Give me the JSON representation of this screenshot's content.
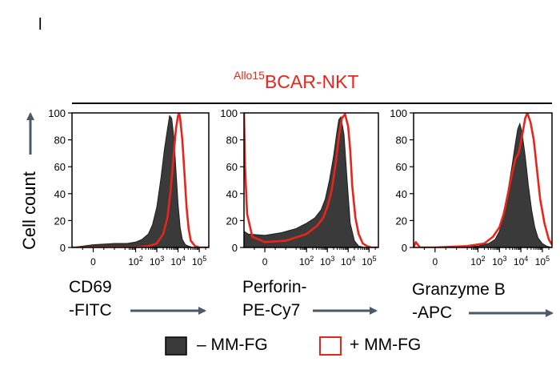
{
  "panel_label": "l",
  "title": {
    "superscript": "Allo15",
    "main": "BCAR-NKT"
  },
  "colors": {
    "filled": "#3a3a3a",
    "outline": "#e8251b",
    "arrow": "#4a5a6a"
  },
  "legend": [
    {
      "symbol": "filled-square",
      "label": "– MM-FG"
    },
    {
      "symbol": "outline-square",
      "label": "+ MM-FG"
    }
  ],
  "chart_data": [
    {
      "type": "area",
      "name": "cd69",
      "xscale": "log",
      "xlim": [
        -1,
        5.45
      ],
      "ylim": [
        0,
        100
      ],
      "yticks": [
        "100",
        "80",
        "60",
        "40",
        "20",
        "0"
      ],
      "xticks": [
        {
          "label": "0",
          "value": 0,
          "super": false
        },
        {
          "label": "10",
          "exp": "2",
          "value": 2
        },
        {
          "label": "10",
          "exp": "3",
          "value": 3
        },
        {
          "label": "10",
          "exp": "4",
          "value": 4
        },
        {
          "label": "10",
          "exp": "5",
          "value": 5
        }
      ],
      "ylabel": "Cell count",
      "xlabel": [
        "CD69",
        "-FITC"
      ],
      "series": [
        {
          "name": "– MM-FG",
          "x": [
            -1,
            0,
            1,
            1.6,
            2.0,
            2.3,
            2.6,
            2.8,
            3.0,
            3.2,
            3.35,
            3.5,
            3.6,
            3.7,
            3.8,
            3.9,
            4.0,
            4.1,
            4.2,
            4.35,
            4.5,
            4.7,
            5.0,
            5.45
          ],
          "y": [
            0,
            2,
            3,
            3,
            4,
            6,
            10,
            17,
            30,
            52,
            72,
            88,
            98,
            96,
            82,
            58,
            32,
            15,
            6,
            2,
            1,
            0,
            0,
            0
          ]
        },
        {
          "name": "+ MM-FG",
          "x": [
            -1,
            1,
            2.0,
            2.6,
            3.0,
            3.3,
            3.5,
            3.65,
            3.8,
            3.9,
            4.0,
            4.05,
            4.1,
            4.2,
            4.3,
            4.4,
            4.5,
            4.6,
            4.8,
            5.0,
            5.45
          ],
          "y": [
            0,
            0,
            0,
            1,
            3,
            10,
            22,
            42,
            70,
            88,
            98,
            100,
            96,
            80,
            56,
            30,
            14,
            5,
            1,
            0,
            0
          ]
        }
      ]
    },
    {
      "type": "area",
      "name": "perforin",
      "xscale": "log",
      "xlim": [
        -1,
        5.45
      ],
      "ylim": [
        0,
        100
      ],
      "yticks": [
        "100",
        "80",
        "60",
        "40",
        "20",
        "0"
      ],
      "xticks": [
        {
          "label": "0",
          "value": 0,
          "super": false
        },
        {
          "label": "10",
          "exp": "2",
          "value": 2
        },
        {
          "label": "10",
          "exp": "3",
          "value": 3
        },
        {
          "label": "10",
          "exp": "4",
          "value": 4
        },
        {
          "label": "10",
          "exp": "5",
          "value": 5
        }
      ],
      "xlabel": [
        "Perforin-",
        "PE-Cy7"
      ],
      "series": [
        {
          "name": "– MM-FG",
          "x": [
            -1,
            -0.8,
            0,
            0.8,
            1.5,
            2.0,
            2.4,
            2.7,
            2.9,
            3.1,
            3.3,
            3.45,
            3.55,
            3.65,
            3.8,
            3.95,
            4.1,
            4.3,
            4.5,
            4.8,
            5.45
          ],
          "y": [
            12,
            10,
            9,
            11,
            14,
            18,
            22,
            28,
            36,
            50,
            68,
            85,
            95,
            97,
            84,
            50,
            18,
            5,
            1,
            0,
            0
          ]
        },
        {
          "name": "+ MM-FG",
          "x": [
            -1,
            -0.95,
            -0.85,
            -0.6,
            0,
            1,
            2.0,
            2.5,
            2.8,
            3.0,
            3.2,
            3.4,
            3.55,
            3.7,
            3.85,
            4.0,
            4.1,
            4.2,
            4.35,
            4.5,
            4.7,
            4.9,
            5.1,
            5.45
          ],
          "y": [
            100,
            60,
            25,
            8,
            4,
            5,
            10,
            16,
            22,
            30,
            42,
            62,
            82,
            96,
            99,
            90,
            72,
            45,
            22,
            10,
            3,
            1,
            0,
            0
          ]
        }
      ]
    },
    {
      "type": "area",
      "name": "granzymeb",
      "xscale": "log",
      "xlim": [
        -1,
        5.45
      ],
      "ylim": [
        0,
        100
      ],
      "yticks": [
        "100",
        "80",
        "60",
        "40",
        "20",
        "0"
      ],
      "xticks": [
        {
          "label": "0",
          "value": 0,
          "super": false
        },
        {
          "label": "10",
          "exp": "2",
          "value": 2
        },
        {
          "label": "10",
          "exp": "3",
          "value": 3
        },
        {
          "label": "10",
          "exp": "4",
          "value": 4
        },
        {
          "label": "10",
          "exp": "5",
          "value": 5
        }
      ],
      "xlabel": [
        "Granzyme B",
        "-APC"
      ],
      "series": [
        {
          "name": "– MM-FG",
          "x": [
            -1,
            1,
            2.0,
            2.5,
            2.8,
            3.0,
            3.2,
            3.4,
            3.6,
            3.75,
            3.85,
            3.95,
            4.05,
            4.2,
            4.35,
            4.5,
            4.65,
            4.8,
            5.0,
            5.2,
            5.45
          ],
          "y": [
            0,
            0,
            1,
            3,
            6,
            12,
            24,
            42,
            62,
            78,
            88,
            92,
            86,
            68,
            46,
            28,
            15,
            7,
            3,
            1,
            0
          ]
        },
        {
          "name": "+ MM-FG",
          "x": [
            -1,
            -0.9,
            -0.7,
            0,
            1.5,
            2.3,
            2.7,
            3.0,
            3.2,
            3.4,
            3.6,
            3.75,
            3.9,
            4.05,
            4.2,
            4.3,
            4.45,
            4.6,
            4.75,
            4.9,
            5.1,
            5.3,
            5.45
          ],
          "y": [
            0,
            4,
            0,
            0,
            1,
            3,
            8,
            15,
            25,
            40,
            56,
            66,
            70,
            82,
            96,
            100,
            93,
            80,
            58,
            36,
            18,
            6,
            2
          ]
        }
      ]
    }
  ]
}
